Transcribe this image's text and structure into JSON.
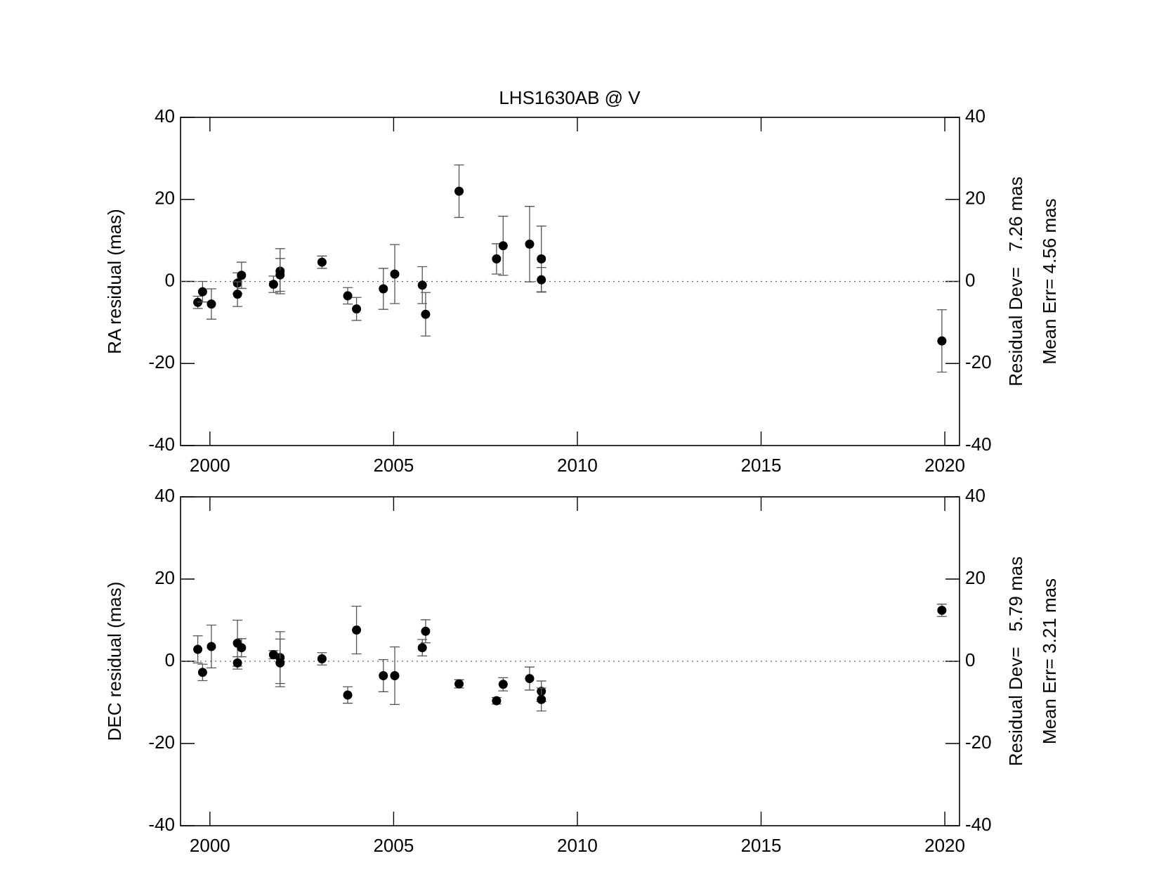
{
  "chart_data": [
    {
      "type": "scatter",
      "title": "LHS1630AB @ V",
      "y_label": "RA residual (mas)",
      "annotations": [
        "Residual Dev=   7.26 mas",
        "Mean Err= 4.56 mas"
      ],
      "x": [
        1999.67,
        1999.8,
        2000.04,
        2000.75,
        2000.75,
        2000.86,
        2001.73,
        2001.91,
        2001.91,
        2003.05,
        2003.75,
        2003.99,
        2004.72,
        2005.03,
        2005.78,
        2005.87,
        2006.78,
        2007.8,
        2007.98,
        2008.7,
        2009.02,
        2009.02,
        2019.92
      ],
      "values": [
        -5.1,
        -2.5,
        -5.5,
        -0.4,
        -3.1,
        1.5,
        -0.7,
        2.5,
        1.6,
        4.7,
        -3.5,
        -6.7,
        -1.8,
        1.8,
        -0.9,
        -8.0,
        22.0,
        5.5,
        8.7,
        9.1,
        5.5,
        0.4,
        -14.5
      ],
      "errors": [
        1.5,
        2.5,
        3.7,
        2.5,
        3.0,
        3.2,
        2.0,
        5.5,
        4.0,
        1.5,
        2.0,
        2.8,
        5.0,
        7.2,
        4.5,
        5.3,
        6.4,
        3.7,
        7.2,
        9.2,
        8.0,
        3.0,
        7.6
      ],
      "color": "#000000",
      "hline": 0,
      "xlim": [
        1999.2,
        2020.4
      ],
      "xticks": [
        2000,
        2005,
        2010,
        2015,
        2020
      ],
      "ylim": [
        -40,
        40
      ],
      "yticks": [
        -40,
        -20,
        0,
        20,
        40
      ]
    },
    {
      "type": "scatter",
      "y_label": "DEC residual (mas)",
      "annotations": [
        "Residual Dev=   5.79 mas",
        "Mean Err= 3.21 mas"
      ],
      "x": [
        1999.67,
        1999.8,
        2000.04,
        2000.75,
        2000.75,
        2000.86,
        2001.73,
        2001.91,
        2001.91,
        2003.05,
        2003.75,
        2003.99,
        2004.72,
        2005.03,
        2005.78,
        2005.87,
        2006.78,
        2007.8,
        2007.98,
        2008.7,
        2009.02,
        2009.02,
        2019.92
      ],
      "values": [
        2.9,
        -2.7,
        3.6,
        4.4,
        -0.4,
        3.3,
        1.6,
        0.9,
        -0.4,
        0.6,
        -8.2,
        7.6,
        -3.5,
        -3.5,
        3.3,
        7.3,
        -5.5,
        -9.6,
        -5.6,
        -4.2,
        -7.3,
        -9.3,
        12.4
      ],
      "errors": [
        3.3,
        2.0,
        5.2,
        5.6,
        1.5,
        2.2,
        1.0,
        6.3,
        5.8,
        1.5,
        2.0,
        5.8,
        3.9,
        7.0,
        2.0,
        2.8,
        1.0,
        0.8,
        1.6,
        2.8,
        2.5,
        2.8,
        1.5
      ],
      "color": "#000000",
      "hline": 0,
      "xlim": [
        1999.2,
        2020.4
      ],
      "xticks": [
        2000,
        2005,
        2010,
        2015,
        2020
      ],
      "ylim": [
        -40,
        40
      ],
      "yticks": [
        -40,
        -20,
        0,
        20,
        40
      ]
    }
  ]
}
